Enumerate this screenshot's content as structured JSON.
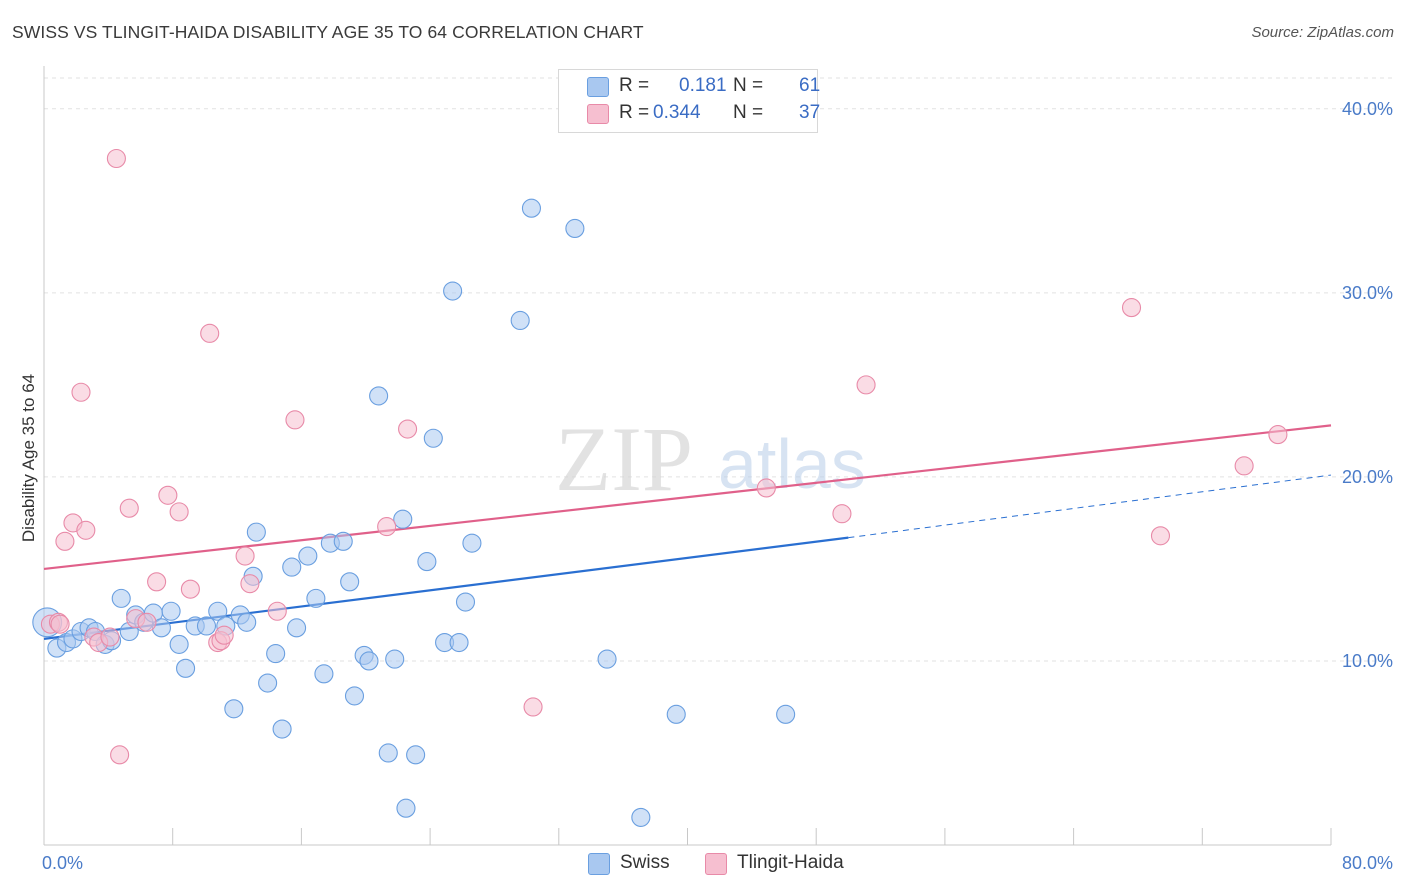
{
  "title": "SWISS VS TLINGIT-HAIDA DISABILITY AGE 35 TO 64 CORRELATION CHART",
  "source": "Source: ZipAtlas.com",
  "watermark": {
    "zip": "ZIP",
    "atlas": "atlas"
  },
  "legend": {
    "r_label": "R =",
    "n_label": "N =",
    "swiss": {
      "r": "0.181",
      "n": "61"
    },
    "tlingit": {
      "r": "0.344",
      "n": "37"
    }
  },
  "bottom_legend": {
    "swiss": "Swiss",
    "tlingit": "Tlingit-Haida"
  },
  "chart_data": {
    "type": "scatter",
    "title": "SWISS VS TLINGIT-HAIDA DISABILITY AGE 35 TO 64 CORRELATION CHART",
    "xlabel": "",
    "ylabel": "Disability Age 35 to 64",
    "xlim": [
      0,
      80
    ],
    "ylim": [
      0,
      42
    ],
    "x_tick_labels": [
      "0.0%",
      "80.0%"
    ],
    "y_ticks": [
      10,
      20,
      30,
      40
    ],
    "y_tick_labels": [
      "10.0%",
      "20.0%",
      "30.0%",
      "40.0%"
    ],
    "colors": {
      "swiss": "#6a9fe0",
      "swiss_fill": "#a9c8f0",
      "swiss_line": "#2a6fd1",
      "tlingit": "#e88aa8",
      "tlingit_fill": "#f6bfd0",
      "tlingit_line": "#e0608a",
      "tick": "#4a7bc8"
    },
    "series": [
      {
        "name": "Swiss",
        "trend": {
          "x0": 0,
          "y0": 11.2,
          "x1": 50,
          "y1": 16.7,
          "dash_x1": 80,
          "dash_y1": 20.1
        },
        "points": [
          [
            0.2,
            12.1,
            1.6
          ],
          [
            0.8,
            10.7,
            1
          ],
          [
            1.4,
            11.0,
            1
          ],
          [
            1.8,
            11.2,
            1
          ],
          [
            2.3,
            11.6,
            1
          ],
          [
            2.8,
            11.8,
            1
          ],
          [
            3.2,
            11.6,
            1
          ],
          [
            3.8,
            10.9,
            1
          ],
          [
            4.2,
            11.1,
            1
          ],
          [
            4.8,
            13.4,
            1
          ],
          [
            5.3,
            11.6,
            1
          ],
          [
            5.7,
            12.5,
            1
          ],
          [
            6.2,
            12.1,
            1
          ],
          [
            6.8,
            12.6,
            1
          ],
          [
            7.3,
            11.8,
            1
          ],
          [
            7.9,
            12.7,
            1
          ],
          [
            8.4,
            10.9,
            1
          ],
          [
            8.8,
            9.6,
            1
          ],
          [
            9.4,
            11.9,
            1
          ],
          [
            10.1,
            11.9,
            1
          ],
          [
            10.8,
            12.7,
            1
          ],
          [
            11.3,
            11.9,
            1
          ],
          [
            11.8,
            7.4,
            1
          ],
          [
            12.2,
            12.5,
            1
          ],
          [
            12.6,
            12.1,
            1
          ],
          [
            13.0,
            14.6,
            1
          ],
          [
            13.2,
            17.0,
            1
          ],
          [
            13.9,
            8.8,
            1
          ],
          [
            14.4,
            10.4,
            1
          ],
          [
            14.8,
            6.3,
            1
          ],
          [
            15.4,
            15.1,
            1
          ],
          [
            15.7,
            11.8,
            1
          ],
          [
            16.4,
            15.7,
            1
          ],
          [
            16.9,
            13.4,
            1
          ],
          [
            17.4,
            9.3,
            1
          ],
          [
            17.8,
            16.4,
            1
          ],
          [
            18.6,
            16.5,
            1
          ],
          [
            19.0,
            14.3,
            1
          ],
          [
            19.3,
            8.1,
            1
          ],
          [
            19.9,
            10.3,
            1
          ],
          [
            20.2,
            10.0,
            1
          ],
          [
            20.8,
            24.4,
            1
          ],
          [
            21.4,
            5.0,
            1
          ],
          [
            21.8,
            10.1,
            1
          ],
          [
            22.3,
            17.7,
            1
          ],
          [
            22.5,
            2.0,
            1
          ],
          [
            23.1,
            4.9,
            1
          ],
          [
            23.8,
            15.4,
            1
          ],
          [
            24.2,
            22.1,
            1
          ],
          [
            24.9,
            11.0,
            1
          ],
          [
            25.4,
            30.1,
            1
          ],
          [
            25.8,
            11.0,
            1
          ],
          [
            26.2,
            13.2,
            1
          ],
          [
            26.6,
            16.4,
            1
          ],
          [
            29.6,
            28.5,
            1
          ],
          [
            30.3,
            34.6,
            1
          ],
          [
            33.0,
            33.5,
            1
          ],
          [
            35.0,
            10.1,
            1
          ],
          [
            37.1,
            1.5,
            1
          ],
          [
            39.3,
            7.1,
            1
          ],
          [
            46.1,
            7.1,
            1
          ]
        ]
      },
      {
        "name": "Tlingit-Haida",
        "trend": {
          "x0": 0,
          "y0": 15.0,
          "x1": 80,
          "y1": 22.8
        },
        "points": [
          [
            0.4,
            12.0,
            1
          ],
          [
            0.9,
            12.1,
            1
          ],
          [
            1.3,
            16.5,
            1
          ],
          [
            1.8,
            17.5,
            1
          ],
          [
            2.3,
            24.6,
            1
          ],
          [
            2.6,
            17.1,
            1
          ],
          [
            3.1,
            11.3,
            1
          ],
          [
            3.4,
            11.0,
            1
          ],
          [
            4.1,
            11.3,
            1
          ],
          [
            4.5,
            37.3,
            1
          ],
          [
            4.7,
            4.9,
            1
          ],
          [
            5.3,
            18.3,
            1
          ],
          [
            5.7,
            12.3,
            1
          ],
          [
            6.4,
            12.1,
            1
          ],
          [
            7.0,
            14.3,
            1
          ],
          [
            7.7,
            19.0,
            1
          ],
          [
            8.4,
            18.1,
            1
          ],
          [
            9.1,
            13.9,
            1
          ],
          [
            10.3,
            27.8,
            1
          ],
          [
            10.8,
            11.0,
            1
          ],
          [
            11.0,
            11.1,
            1
          ],
          [
            11.2,
            11.4,
            1
          ],
          [
            12.5,
            15.7,
            1
          ],
          [
            12.8,
            14.2,
            1
          ],
          [
            14.5,
            12.7,
            1
          ],
          [
            15.6,
            23.1,
            1
          ],
          [
            21.3,
            17.3,
            1
          ],
          [
            22.6,
            22.6,
            1
          ],
          [
            30.4,
            7.5,
            1
          ],
          [
            44.9,
            19.4,
            1
          ],
          [
            49.6,
            18.0,
            1
          ],
          [
            51.1,
            25.0,
            1
          ],
          [
            67.6,
            29.2,
            1
          ],
          [
            69.4,
            16.8,
            1
          ],
          [
            74.6,
            20.6,
            1
          ],
          [
            76.7,
            22.3,
            1
          ],
          [
            1.0,
            12.0,
            1
          ]
        ]
      }
    ]
  }
}
